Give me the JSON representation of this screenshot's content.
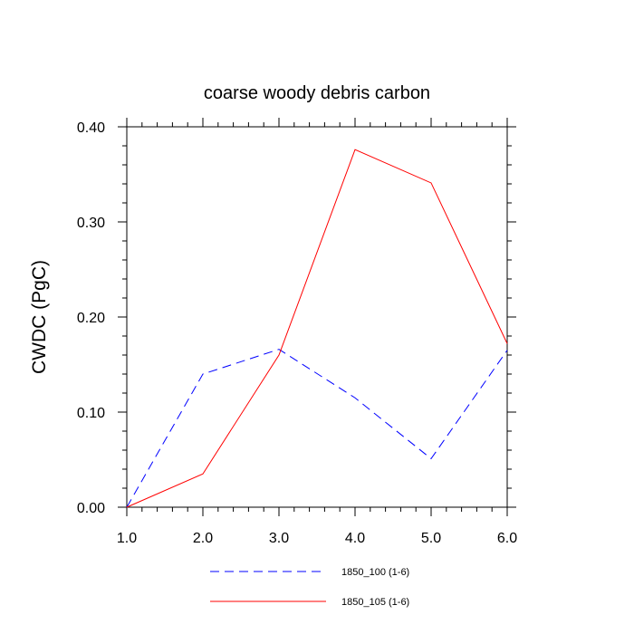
{
  "chart_data": {
    "type": "line",
    "title": "coarse woody debris carbon",
    "xlabel": "",
    "ylabel": "CWDC  (PgC)",
    "x": [
      1.0,
      2.0,
      3.0,
      4.0,
      5.0,
      6.0
    ],
    "x_tick_labels": [
      "1.0",
      "2.0",
      "3.0",
      "4.0",
      "5.0",
      "6.0"
    ],
    "y_tick_labels": [
      "0.00",
      "0.10",
      "0.20",
      "0.30",
      "0.40"
    ],
    "xlim": [
      1.0,
      6.0
    ],
    "ylim": [
      0.0,
      0.4
    ],
    "grid": false,
    "legend_position": "bottom",
    "series": [
      {
        "name": "1850_100 (1-6)",
        "values": [
          0.0,
          0.14,
          0.166,
          0.115,
          0.051,
          0.165
        ],
        "color": "#0000ff",
        "dash": "dashed"
      },
      {
        "name": "1850_105 (1-6)",
        "values": [
          0.0,
          0.035,
          0.16,
          0.376,
          0.341,
          0.172
        ],
        "color": "#ff0000",
        "dash": "solid"
      }
    ]
  }
}
